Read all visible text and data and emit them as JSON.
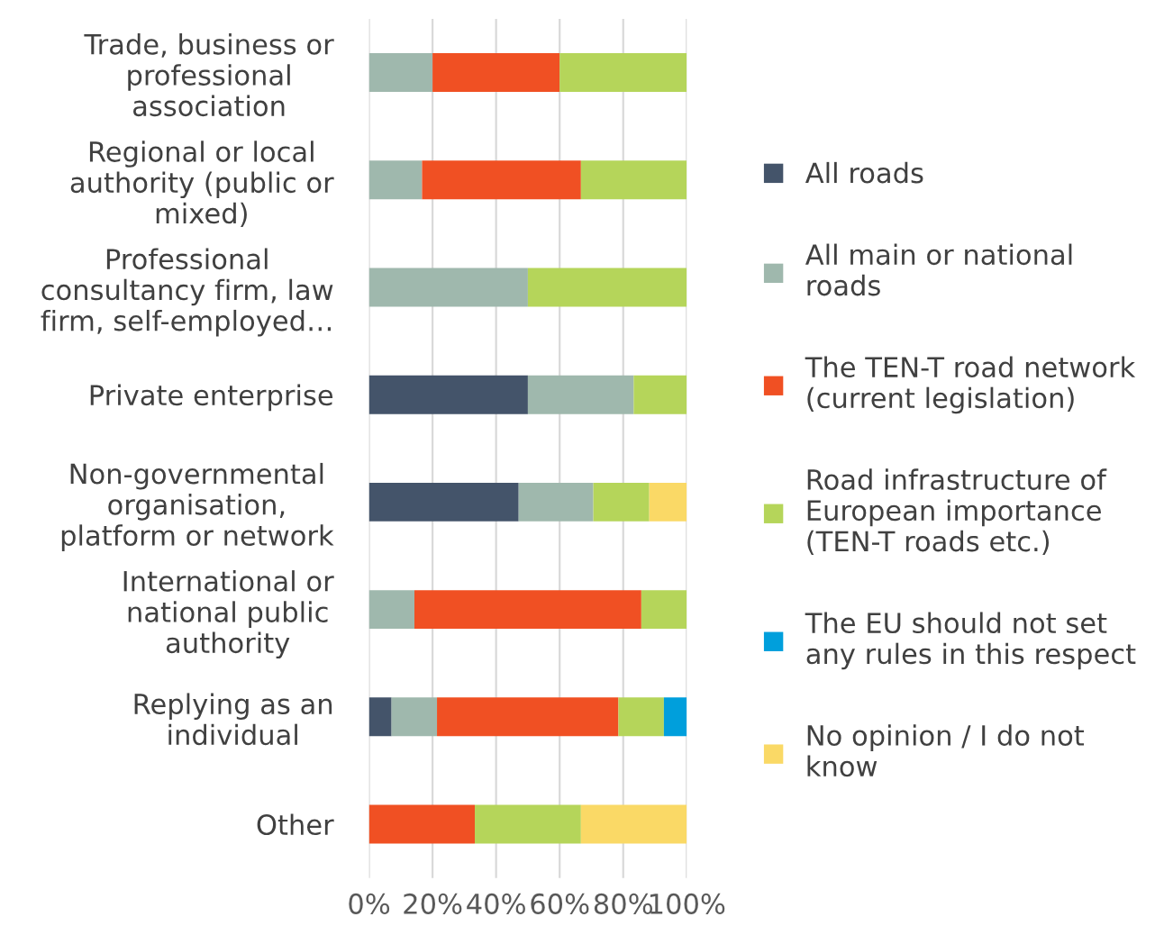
{
  "chart_data": {
    "type": "bar",
    "orientation": "horizontal",
    "stacked": true,
    "categories": [
      "Trade, business or\nprofessional\nassociation",
      "Regional or local\nauthority (public or\nmixed)",
      "Professional\nconsultancy firm, law\nfirm, self-employed…",
      "Private enterprise",
      "Non-governmental\norganisation,\nplatform or network",
      "International or\nnational public\nauthority",
      "Replying as an\nindividual",
      "Other"
    ],
    "series": [
      {
        "name": "All roads",
        "color": "#44546a",
        "values": [
          0,
          0,
          0,
          50,
          47.1,
          0,
          7.1,
          0
        ]
      },
      {
        "name": "All main or national\nroads",
        "color": "#9fb8ad",
        "values": [
          20,
          16.7,
          50,
          33.3,
          23.5,
          14.3,
          14.3,
          0
        ]
      },
      {
        "name": "The TEN-T road network\n(current legislation)",
        "color": "#f05023",
        "values": [
          40,
          50,
          0,
          0,
          0,
          71.4,
          57.1,
          33.3
        ]
      },
      {
        "name": "Road infrastructure of\nEuropean importance\n(TEN-T roads etc.)",
        "color": "#b5d55a",
        "values": [
          40,
          33.3,
          50,
          16.7,
          17.6,
          14.3,
          14.3,
          33.4
        ]
      },
      {
        "name": "The EU should not set\nany rules in this respect",
        "color": "#009fdc",
        "values": [
          0,
          0,
          0,
          0,
          0,
          0,
          7.2,
          0
        ]
      },
      {
        "name": "No opinion / I do not\nknow",
        "color": "#fad966",
        "values": [
          0,
          0,
          0,
          0,
          11.8,
          0,
          0,
          33.3
        ]
      }
    ],
    "xlim": [
      0,
      100
    ],
    "xticks": [
      {
        "value": 0,
        "label": "0%"
      },
      {
        "value": 20,
        "label": "20%"
      },
      {
        "value": 40,
        "label": "40%"
      },
      {
        "value": 60,
        "label": "60%"
      },
      {
        "value": 80,
        "label": "80%"
      },
      {
        "value": 100,
        "label": "100%"
      }
    ],
    "grid": "x",
    "legend": "right"
  }
}
